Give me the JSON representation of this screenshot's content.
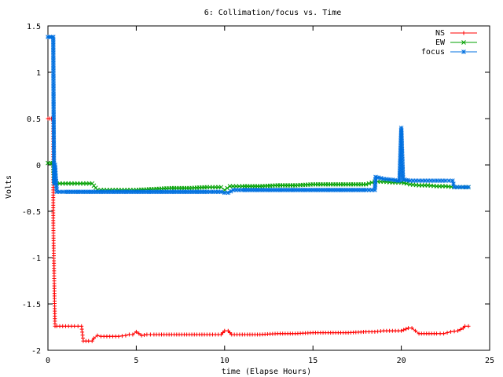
{
  "chart_data": {
    "type": "line",
    "title": "6: Collimation/focus vs. Time",
    "xlabel": "time (Elapse Hours)",
    "ylabel": "Volts",
    "xlim": [
      0,
      25
    ],
    "ylim": [
      -2,
      1.5
    ],
    "xticks": [
      0,
      5,
      10,
      15,
      20,
      25
    ],
    "yticks": [
      -2,
      -1.5,
      -1,
      -0.5,
      0,
      0.5,
      1,
      1.5
    ],
    "grid": false,
    "legend": "top-right",
    "series": [
      {
        "name": "NS",
        "color": "#ff0000",
        "marker": "plus",
        "x": [
          0.0,
          0.1,
          0.2,
          0.3,
          0.3,
          0.4,
          0.5,
          1.0,
          1.5,
          1.9,
          2.0,
          2.3,
          2.5,
          2.6,
          2.8,
          3.0,
          3.5,
          4.0,
          4.4,
          4.6,
          4.8,
          5.0,
          5.3,
          5.6,
          6.0,
          7.0,
          8.0,
          9.0,
          9.8,
          10.0,
          10.2,
          10.4,
          11.0,
          12.0,
          13.0,
          14.0,
          15.0,
          16.0,
          17.0,
          18.0,
          18.5,
          19.0,
          19.5,
          20.0,
          20.4,
          20.6,
          20.8,
          21.0,
          22.0,
          22.4,
          22.8,
          23.2,
          23.5,
          23.6,
          23.8
        ],
        "y": [
          0.5,
          0.5,
          0.5,
          0.5,
          -0.6,
          -1.74,
          -1.74,
          -1.74,
          -1.74,
          -1.74,
          -1.9,
          -1.9,
          -1.9,
          -1.87,
          -1.84,
          -1.85,
          -1.85,
          -1.85,
          -1.84,
          -1.83,
          -1.83,
          -1.8,
          -1.84,
          -1.83,
          -1.83,
          -1.83,
          -1.83,
          -1.83,
          -1.83,
          -1.79,
          -1.79,
          -1.83,
          -1.83,
          -1.83,
          -1.82,
          -1.82,
          -1.81,
          -1.81,
          -1.81,
          -1.8,
          -1.8,
          -1.79,
          -1.79,
          -1.79,
          -1.76,
          -1.76,
          -1.79,
          -1.82,
          -1.82,
          -1.82,
          -1.8,
          -1.79,
          -1.76,
          -1.74,
          -1.74
        ]
      },
      {
        "name": "EW",
        "color": "#00a000",
        "marker": "cross",
        "x": [
          0.0,
          0.2,
          0.3,
          0.35,
          0.5,
          1.0,
          1.5,
          2.0,
          2.5,
          2.8,
          3.0,
          3.5,
          4.0,
          4.5,
          5.0,
          6.0,
          7.0,
          8.0,
          9.0,
          9.8,
          10.0,
          10.3,
          11.0,
          12.0,
          13.0,
          14.0,
          15.0,
          16.0,
          17.0,
          18.0,
          18.5,
          19.0,
          19.5,
          20.0,
          20.3,
          20.5,
          21.0,
          21.5,
          22.0,
          22.5,
          23.0,
          23.5,
          23.8
        ],
        "y": [
          0.02,
          0.02,
          0.02,
          -0.2,
          -0.2,
          -0.2,
          -0.2,
          -0.2,
          -0.2,
          -0.27,
          -0.27,
          -0.27,
          -0.27,
          -0.27,
          -0.27,
          -0.26,
          -0.25,
          -0.25,
          -0.24,
          -0.24,
          -0.27,
          -0.23,
          -0.23,
          -0.23,
          -0.22,
          -0.22,
          -0.21,
          -0.21,
          -0.21,
          -0.21,
          -0.18,
          -0.18,
          -0.19,
          -0.19,
          -0.2,
          -0.21,
          -0.22,
          -0.22,
          -0.23,
          -0.23,
          -0.24,
          -0.24,
          -0.24
        ]
      },
      {
        "name": "focus",
        "color": "#0070e0",
        "marker": "star",
        "x": [
          0.0,
          0.1,
          0.2,
          0.3,
          0.32,
          0.35,
          0.4,
          0.5,
          1.0,
          2.0,
          3.0,
          4.0,
          5.0,
          6.0,
          7.0,
          8.0,
          9.0,
          9.8,
          10.0,
          10.2,
          10.5,
          11.0,
          12.0,
          13.0,
          14.0,
          15.0,
          16.0,
          17.0,
          18.0,
          18.5,
          18.55,
          19.0,
          19.5,
          19.8,
          19.9,
          20.0,
          20.1,
          20.2,
          20.5,
          21.0,
          21.5,
          22.0,
          22.5,
          22.9,
          23.0,
          23.5,
          23.8
        ],
        "y": [
          1.38,
          1.38,
          1.38,
          1.38,
          0.6,
          -0.2,
          0.0,
          -0.29,
          -0.29,
          -0.29,
          -0.29,
          -0.29,
          -0.29,
          -0.29,
          -0.29,
          -0.29,
          -0.29,
          -0.29,
          -0.3,
          -0.3,
          -0.27,
          -0.27,
          -0.27,
          -0.27,
          -0.27,
          -0.27,
          -0.27,
          -0.27,
          -0.27,
          -0.27,
          -0.13,
          -0.15,
          -0.16,
          -0.17,
          -0.17,
          0.4,
          -0.16,
          -0.16,
          -0.17,
          -0.17,
          -0.17,
          -0.17,
          -0.17,
          -0.17,
          -0.24,
          -0.24,
          -0.24
        ]
      }
    ]
  }
}
